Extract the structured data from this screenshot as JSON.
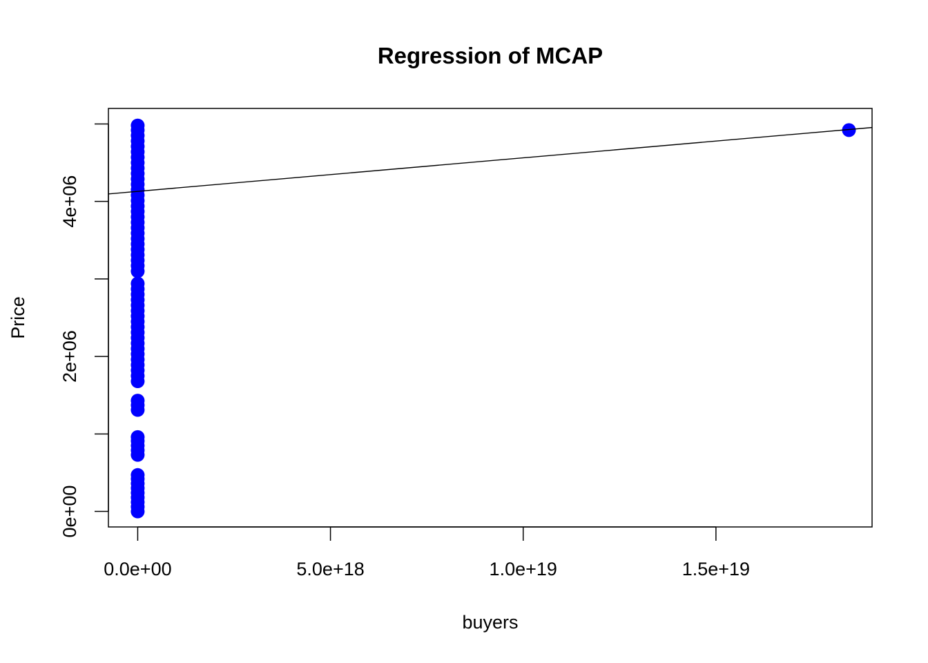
{
  "chart_data": {
    "type": "scatter",
    "title": "Regression of MCAP",
    "xlabel": "buyers",
    "ylabel": "Price",
    "xlim": [
      -7.6e+17,
      1.905e+19
    ],
    "ylim": [
      -200000,
      5200000
    ],
    "x_ticks": [
      0,
      5e+18,
      1e+19,
      1.5e+19
    ],
    "x_tick_labels": [
      "0.0e+00",
      "5.0e+18",
      "1.0e+19",
      "1.5e+19"
    ],
    "y_ticks": [
      0,
      1000000,
      2000000,
      3000000,
      4000000,
      5000000
    ],
    "y_tick_labels": [
      "0e+00",
      "",
      "2e+06",
      "",
      "4e+06",
      ""
    ],
    "point_color": "#0000ff",
    "line_color": "#000000",
    "grid": false,
    "points": [
      {
        "x": 0,
        "y": 0
      },
      {
        "x": 0,
        "y": 60000
      },
      {
        "x": 0,
        "y": 120000
      },
      {
        "x": 0,
        "y": 180000
      },
      {
        "x": 0,
        "y": 240000
      },
      {
        "x": 0,
        "y": 300000
      },
      {
        "x": 0,
        "y": 360000
      },
      {
        "x": 0,
        "y": 420000
      },
      {
        "x": 0,
        "y": 470000
      },
      {
        "x": 0,
        "y": 730000
      },
      {
        "x": 0,
        "y": 790000
      },
      {
        "x": 0,
        "y": 850000
      },
      {
        "x": 0,
        "y": 910000
      },
      {
        "x": 0,
        "y": 960000
      },
      {
        "x": 0,
        "y": 1310000
      },
      {
        "x": 0,
        "y": 1370000
      },
      {
        "x": 0,
        "y": 1430000
      },
      {
        "x": 0,
        "y": 1680000
      },
      {
        "x": 0,
        "y": 1750000
      },
      {
        "x": 0,
        "y": 1820000
      },
      {
        "x": 0,
        "y": 1890000
      },
      {
        "x": 0,
        "y": 1960000
      },
      {
        "x": 0,
        "y": 2030000
      },
      {
        "x": 0,
        "y": 2100000
      },
      {
        "x": 0,
        "y": 2170000
      },
      {
        "x": 0,
        "y": 2240000
      },
      {
        "x": 0,
        "y": 2310000
      },
      {
        "x": 0,
        "y": 2380000
      },
      {
        "x": 0,
        "y": 2450000
      },
      {
        "x": 0,
        "y": 2520000
      },
      {
        "x": 0,
        "y": 2590000
      },
      {
        "x": 0,
        "y": 2660000
      },
      {
        "x": 0,
        "y": 2730000
      },
      {
        "x": 0,
        "y": 2800000
      },
      {
        "x": 0,
        "y": 2870000
      },
      {
        "x": 0,
        "y": 2940000
      },
      {
        "x": 0,
        "y": 3100000
      },
      {
        "x": 0,
        "y": 3170000
      },
      {
        "x": 0,
        "y": 3240000
      },
      {
        "x": 0,
        "y": 3310000
      },
      {
        "x": 0,
        "y": 3380000
      },
      {
        "x": 0,
        "y": 3450000
      },
      {
        "x": 0,
        "y": 3520000
      },
      {
        "x": 0,
        "y": 3590000
      },
      {
        "x": 0,
        "y": 3660000
      },
      {
        "x": 0,
        "y": 3730000
      },
      {
        "x": 0,
        "y": 3800000
      },
      {
        "x": 0,
        "y": 3870000
      },
      {
        "x": 0,
        "y": 3940000
      },
      {
        "x": 0,
        "y": 4010000
      },
      {
        "x": 0,
        "y": 4080000
      },
      {
        "x": 0,
        "y": 4150000
      },
      {
        "x": 0,
        "y": 4220000
      },
      {
        "x": 0,
        "y": 4290000
      },
      {
        "x": 0,
        "y": 4360000
      },
      {
        "x": 0,
        "y": 4430000
      },
      {
        "x": 0,
        "y": 4500000
      },
      {
        "x": 0,
        "y": 4570000
      },
      {
        "x": 0,
        "y": 4640000
      },
      {
        "x": 0,
        "y": 4710000
      },
      {
        "x": 0,
        "y": 4780000
      },
      {
        "x": 0,
        "y": 4850000
      },
      {
        "x": 0,
        "y": 4920000
      },
      {
        "x": 0,
        "y": 4980000
      },
      {
        "x": 1.845e+19,
        "y": 4920000
      }
    ],
    "regression_line": {
      "intercept": 4130000,
      "slope": 4.325e-14
    }
  }
}
